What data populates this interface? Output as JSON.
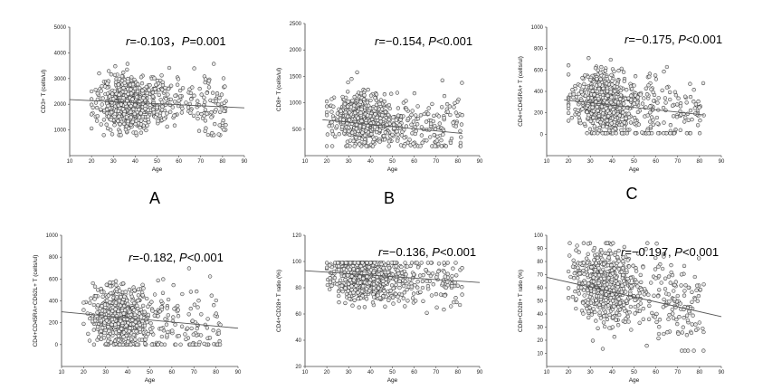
{
  "chart_data": [
    {
      "type": "scatter",
      "panel_label": "A",
      "ylabel": "CD3+ T (cells/ul)",
      "xlabel": "Age",
      "xlim": [
        10,
        90
      ],
      "ylim": [
        0,
        5000
      ],
      "xticks": [
        10,
        20,
        30,
        40,
        50,
        60,
        70,
        80,
        90
      ],
      "yticks": [
        1000,
        2000,
        3000,
        4000,
        5000
      ],
      "annotation": {
        "r_prefix": "r",
        "r_value": "=-0.103，",
        "p_prefix": "P",
        "p_value": "=0.001"
      },
      "trend": {
        "x": [
          10,
          90
        ],
        "y": [
          2180,
          1860
        ]
      },
      "points": {
        "count": 760,
        "x_center": 37,
        "x_spread": 7,
        "y_center": 2050,
        "y_spread": 520,
        "x_min": 20,
        "x_max": 82,
        "y_min": 800,
        "y_max": 4600
      }
    },
    {
      "type": "scatter",
      "panel_label": "B",
      "ylabel": "CD8+ T (cells/ul)",
      "xlabel": "Age",
      "xlim": [
        10,
        90
      ],
      "ylim": [
        0,
        2500
      ],
      "xticks": [
        10,
        20,
        30,
        40,
        50,
        60,
        70,
        80,
        90
      ],
      "yticks": [
        500,
        1000,
        1500,
        2000,
        2500
      ],
      "annotation": {
        "r_prefix": "r",
        "r_value": "=−0.154, ",
        "p_prefix": "P",
        "p_value": "<0.001"
      },
      "trend": {
        "x": [
          18,
          82
        ],
        "y": [
          680,
          420
        ]
      },
      "points": {
        "count": 760,
        "x_center": 37,
        "x_spread": 7,
        "y_center": 680,
        "y_spread": 240,
        "x_min": 20,
        "x_max": 82,
        "y_min": 180,
        "y_max": 2000
      }
    },
    {
      "type": "scatter",
      "panel_label": "C",
      "ylabel": "CD4+CD45RA+ T (cells/ul)",
      "xlabel": "Age",
      "xlim": [
        10,
        90
      ],
      "ylim": [
        -200,
        1000
      ],
      "xticks": [
        10,
        20,
        30,
        40,
        50,
        60,
        70,
        80,
        90
      ],
      "yticks": [
        0,
        200,
        400,
        600,
        800,
        1000
      ],
      "annotation": {
        "r_prefix": "r",
        "r_value": "=−0.175, ",
        "p_prefix": "P",
        "p_value": "<0.001"
      },
      "trend": {
        "x": [
          18,
          82
        ],
        "y": [
          320,
          180
        ]
      },
      "points": {
        "count": 760,
        "x_center": 37,
        "x_spread": 7,
        "y_center": 270,
        "y_spread": 150,
        "x_min": 20,
        "x_max": 82,
        "y_min": 10,
        "y_max": 900
      }
    },
    {
      "type": "scatter",
      "panel_label": "",
      "ylabel": "CD4+CD45RA+CD62L+ T (cells/ul)",
      "xlabel": "Age",
      "xlim": [
        10,
        90
      ],
      "ylim": [
        -200,
        1000
      ],
      "xticks": [
        10,
        20,
        30,
        40,
        50,
        60,
        70,
        80,
        90
      ],
      "yticks": [
        0,
        200,
        400,
        600,
        800,
        1000
      ],
      "annotation": {
        "r_prefix": "r",
        "r_value": "=-0.182, ",
        "p_prefix": "P",
        "p_value": "<0.001"
      },
      "trend": {
        "x": [
          10,
          90
        ],
        "y": [
          300,
          150
        ]
      },
      "points": {
        "count": 760,
        "x_center": 37,
        "x_spread": 7,
        "y_center": 240,
        "y_spread": 140,
        "x_min": 20,
        "x_max": 82,
        "y_min": 0,
        "y_max": 860
      }
    },
    {
      "type": "scatter",
      "panel_label": "",
      "ylabel": "CD4+CD28+ T ratio (%)",
      "xlabel": "Age",
      "xlim": [
        10,
        90
      ],
      "ylim": [
        20,
        120
      ],
      "xticks": [
        10,
        20,
        30,
        40,
        50,
        60,
        70,
        80,
        90
      ],
      "yticks": [
        20,
        40,
        60,
        80,
        100,
        120
      ],
      "annotation": {
        "r_prefix": "r",
        "r_value": "=−0.136, ",
        "p_prefix": "P",
        "p_value": "<0.001"
      },
      "trend": {
        "x": [
          10,
          90
        ],
        "y": [
          93,
          84
        ]
      },
      "points": {
        "count": 760,
        "x_center": 37,
        "x_spread": 7,
        "y_center": 88,
        "y_spread": 9,
        "x_min": 20,
        "x_max": 82,
        "y_min": 28,
        "y_max": 99
      }
    },
    {
      "type": "scatter",
      "panel_label": "",
      "ylabel": "CD8+CD28+ T ratio (%)",
      "xlabel": "Age",
      "xlim": [
        10,
        90
      ],
      "ylim": [
        0,
        100
      ],
      "xticks": [
        10,
        20,
        30,
        40,
        50,
        60,
        70,
        80,
        90
      ],
      "yticks": [
        10,
        20,
        30,
        40,
        50,
        60,
        70,
        80,
        90,
        100
      ],
      "annotation": {
        "r_prefix": "r",
        "r_value": "=−0.197, ",
        "p_prefix": "P",
        "p_value": "<0.001"
      },
      "trend": {
        "x": [
          10,
          90
        ],
        "y": [
          68,
          38
        ]
      },
      "points": {
        "count": 760,
        "x_center": 37,
        "x_spread": 7,
        "y_center": 62,
        "y_spread": 14,
        "x_min": 20,
        "x_max": 82,
        "y_min": 12,
        "y_max": 94
      }
    }
  ],
  "colors": {
    "marker_stroke": "#3a3a3a",
    "marker_fill": "#e6e6e6",
    "trend": "#555555",
    "axis": "#444444"
  }
}
